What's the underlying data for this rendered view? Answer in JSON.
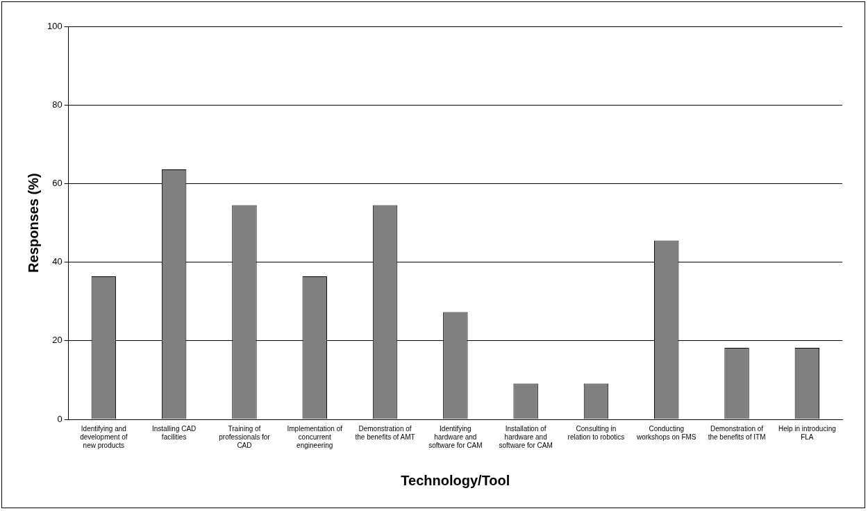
{
  "chart_data": {
    "type": "bar",
    "xlabel": "Technology/Tool",
    "ylabel": "Responses (%)",
    "categories": [
      "Identifying and development of new products",
      "Installing CAD facilities",
      "Training of professionals for CAD",
      "Implementation of concurrent engineering",
      "Demonstration of the benefits of AMT",
      "Identifying hardware and software for CAM",
      "Installation of hardware and software for CAM",
      "Consulting in relation to robotics",
      "Conducting workshops on FMS",
      "Demonstration of the benefits of ITM",
      "Help in introducing FLA"
    ],
    "values": [
      36.4,
      63.6,
      54.5,
      36.4,
      54.5,
      27.3,
      9.1,
      9.1,
      45.5,
      18.2,
      18.2
    ],
    "color": "#808080",
    "ylim": [
      0,
      100
    ],
    "yticks": [
      0,
      20,
      40,
      60,
      80,
      100
    ],
    "grid": "y",
    "legend": false
  }
}
